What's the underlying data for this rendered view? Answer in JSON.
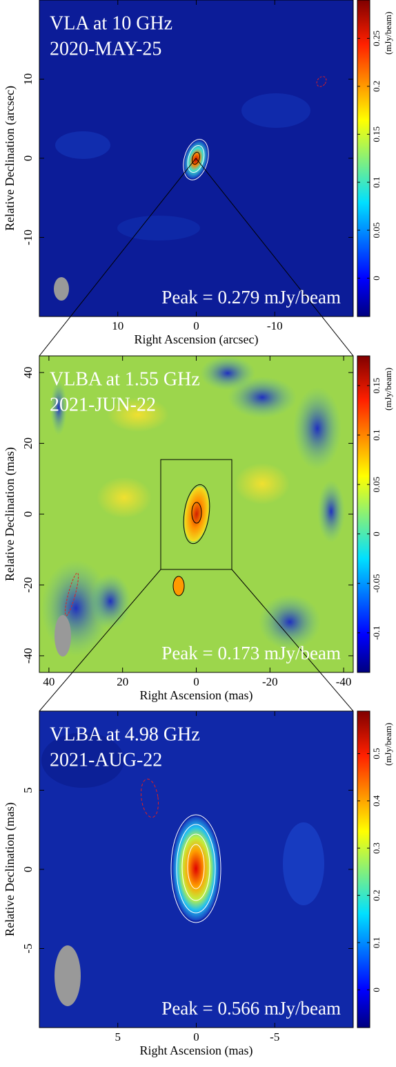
{
  "chart_data": [
    {
      "type": "image",
      "title": "VLA at 10 GHz",
      "subtitle": "2020-MAY-25",
      "annotation": "Peak = 0.279 mJy/beam",
      "xlabel": "Right Ascension (arcsec)",
      "ylabel": "Relative Declination (arcsec)",
      "xlim": [
        20,
        -20
      ],
      "ylim": [
        -20,
        20
      ],
      "xticks": [
        10,
        0,
        -10
      ],
      "yticks": [
        -10,
        0,
        10
      ],
      "colorbar": {
        "label": "(mJy/beam)",
        "lim": [
          -0.04,
          0.29
        ],
        "ticks": [
          0,
          0.05,
          0.1,
          0.15,
          0.2,
          0.25
        ]
      }
    },
    {
      "type": "image",
      "title": "VLBA at 1.55 GHz",
      "subtitle": "2021-JUN-22",
      "annotation": "Peak = 0.173 mJy/beam",
      "xlabel": "Right Ascension (mas)",
      "ylabel": "Relative Declination (mas)",
      "xlim": [
        42.6,
        -42.6
      ],
      "ylim": [
        -44.7,
        44.7
      ],
      "xticks": [
        40,
        20,
        0,
        -20,
        -40
      ],
      "yticks": [
        -40,
        -20,
        0,
        20,
        40
      ],
      "colorbar": {
        "label": "(mJy/beam)",
        "lim": [
          -0.14,
          0.18
        ],
        "ticks": [
          -0.1,
          -0.05,
          0,
          0.05,
          0.1,
          0.15
        ]
      }
    },
    {
      "type": "image",
      "title": "VLBA at 4.98 GHz",
      "subtitle": "2021-AUG-22",
      "annotation": "Peak = 0.566 mJy/beam",
      "xlabel": "Right Ascension (mas)",
      "ylabel": "Relative Declination (mas)",
      "xlim": [
        10,
        -10
      ],
      "ylim": [
        -10,
        10
      ],
      "xticks": [
        5,
        0,
        -5
      ],
      "yticks": [
        -5,
        0,
        5
      ],
      "colorbar": {
        "label": "(mJy/beam)",
        "lim": [
          -0.08,
          0.59
        ],
        "ticks": [
          0,
          0.1,
          0.2,
          0.3,
          0.4,
          0.5
        ]
      }
    }
  ]
}
